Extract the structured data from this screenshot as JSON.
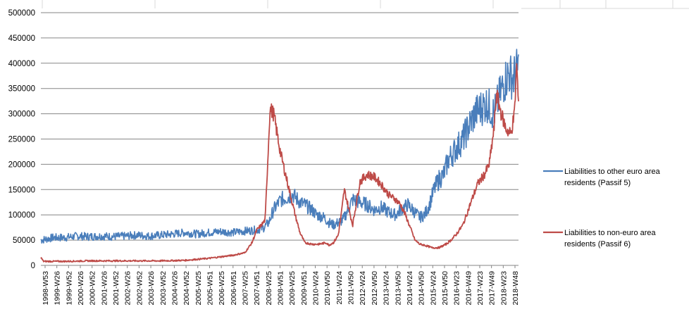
{
  "colors": {
    "series_blue": "#4a7ebb",
    "series_red": "#be4b48",
    "grid": "#868686",
    "sheet_grid": "#d9d9d9"
  },
  "chart_data": {
    "type": "line",
    "title": "",
    "xlabel": "",
    "ylabel": "",
    "ylim": [
      0,
      500000
    ],
    "y_ticks": [
      0,
      50000,
      100000,
      150000,
      200000,
      250000,
      300000,
      350000,
      400000,
      450000,
      500000
    ],
    "y_tick_labels": [
      "0",
      "50000",
      "100000",
      "150000",
      "200000",
      "250000",
      "300000",
      "350000",
      "400000",
      "450000",
      "500000"
    ],
    "x_tick_labels": [
      "1998-W53",
      "1999-W26",
      "1999-W52",
      "2000-W26",
      "2000-W52",
      "2001-W26",
      "2001-W52",
      "2002-W26",
      "2002-W52",
      "2003-W26",
      "2003-W52",
      "2004-W26",
      "2004-W52",
      "2005-W25",
      "2005-W51",
      "2006-W25",
      "2006-W51",
      "2007-W25",
      "2007-W51",
      "2008-W25",
      "2008-W51",
      "2009-W25",
      "2009-W51",
      "2010-W24",
      "2010-W50",
      "2011-W24",
      "2011-W50",
      "2012-W24",
      "2012-W50",
      "2013-W24",
      "2013-W50",
      "2014-W24",
      "2014-W50",
      "2015-W24",
      "2015-W50",
      "2016-W23",
      "2016-W49",
      "2017-W23",
      "2017-W49",
      "2018-W23",
      "2018-W48"
    ],
    "x_range_years": [
      1998.99,
      2018.92
    ],
    "grid": true,
    "legend_position": "right",
    "series": [
      {
        "name": "Liabilities to other euro area residents (Passif 5)",
        "color": "#4a7ebb",
        "x": [
          1999.0,
          1999.5,
          2000.0,
          2000.5,
          2001.0,
          2001.5,
          2002.0,
          2002.5,
          2003.0,
          2003.5,
          2004.0,
          2004.5,
          2005.0,
          2005.5,
          2006.0,
          2006.5,
          2007.0,
          2007.5,
          2008.0,
          2008.3,
          2008.5,
          2008.7,
          2009.0,
          2009.3,
          2009.5,
          2009.8,
          2010.0,
          2010.3,
          2010.5,
          2010.8,
          2011.0,
          2011.2,
          2011.4,
          2011.6,
          2011.9,
          2012.0,
          2012.3,
          2012.6,
          2012.9,
          2013.2,
          2013.5,
          2013.8,
          2014.0,
          2014.3,
          2014.5,
          2014.8,
          2015.0,
          2015.2,
          2015.4,
          2015.6,
          2015.8,
          2016.0,
          2016.3,
          2016.6,
          2016.9,
          2017.1,
          2017.3,
          2017.6,
          2017.9,
          2018.1,
          2018.3,
          2018.5,
          2018.7,
          2018.9
        ],
        "y": [
          50000,
          55000,
          55000,
          58000,
          57000,
          58000,
          57000,
          58000,
          60000,
          58000,
          60000,
          62000,
          65000,
          62000,
          65000,
          67000,
          65000,
          68000,
          70000,
          75000,
          85000,
          110000,
          130000,
          135000,
          140000,
          125000,
          120000,
          110000,
          100000,
          95000,
          85000,
          80000,
          85000,
          90000,
          120000,
          130000,
          125000,
          120000,
          110000,
          115000,
          105000,
          100000,
          110000,
          120000,
          110000,
          95000,
          100000,
          120000,
          150000,
          170000,
          180000,
          210000,
          230000,
          250000,
          280000,
          300000,
          310000,
          320000,
          300000,
          330000,
          360000,
          380000,
          370000,
          390000
        ]
      },
      {
        "name": "Liabilities to non-euro area residents (Passif 6)",
        "color": "#be4b48",
        "x": [
          1999.0,
          1999.1,
          2000.0,
          2001.0,
          2002.0,
          2003.0,
          2004.0,
          2005.0,
          2005.5,
          2006.0,
          2006.5,
          2007.0,
          2007.5,
          2007.8,
          2008.0,
          2008.2,
          2008.35,
          2008.45,
          2008.55,
          2008.7,
          2008.85,
          2009.0,
          2009.2,
          2009.4,
          2009.6,
          2009.8,
          2010.0,
          2010.3,
          2010.6,
          2010.9,
          2011.0,
          2011.2,
          2011.4,
          2011.55,
          2011.65,
          2011.8,
          2012.0,
          2012.3,
          2012.6,
          2012.9,
          2013.2,
          2013.5,
          2013.8,
          2014.0,
          2014.2,
          2014.4,
          2014.6,
          2014.8,
          2015.0,
          2015.3,
          2015.6,
          2015.9,
          2016.1,
          2016.3,
          2016.6,
          2016.9,
          2017.2,
          2017.5,
          2017.7,
          2017.9,
          2018.0,
          2018.2,
          2018.4,
          2018.6,
          2018.75,
          2018.85,
          2018.92
        ],
        "y": [
          15000,
          8000,
          8000,
          9000,
          9000,
          9000,
          9000,
          10000,
          12000,
          14000,
          17000,
          20000,
          25000,
          45000,
          70000,
          80000,
          90000,
          200000,
          310000,
          300000,
          260000,
          220000,
          180000,
          140000,
          100000,
          65000,
          45000,
          42000,
          42000,
          45000,
          40000,
          45000,
          60000,
          110000,
          150000,
          120000,
          80000,
          165000,
          180000,
          175000,
          160000,
          140000,
          130000,
          120000,
          100000,
          75000,
          50000,
          42000,
          40000,
          35000,
          35000,
          42000,
          50000,
          60000,
          80000,
          120000,
          160000,
          180000,
          200000,
          270000,
          340000,
          300000,
          270000,
          260000,
          300000,
          400000,
          310000
        ]
      }
    ]
  },
  "legend": {
    "items": [
      {
        "line1": "Liabilities to other euro area",
        "line2": "residents (Passif 5)",
        "color": "#4a7ebb"
      },
      {
        "line1": "Liabilities to non-euro area",
        "line2": "residents (Passif 6)",
        "color": "#be4b48"
      }
    ]
  }
}
